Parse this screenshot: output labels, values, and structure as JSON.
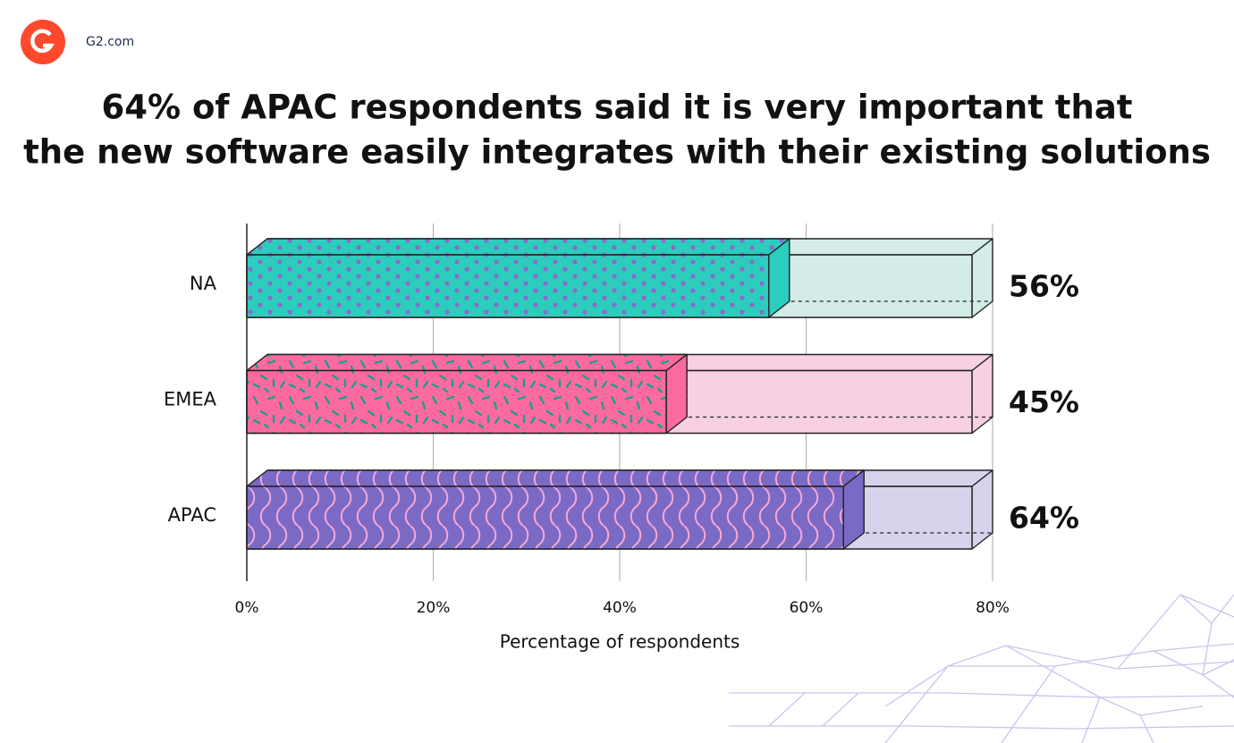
{
  "source": "G2.com",
  "chart_data": {
    "type": "bar3d",
    "orientation": "horizontal",
    "title": [
      "64% of APAC respondents said it is very important that",
      "the new software easily integrates with their existing solutions"
    ],
    "categories": [
      "NA",
      "EMEA",
      "APAC"
    ],
    "values": [
      56,
      45,
      64
    ],
    "value_labels": [
      "56%",
      "45%",
      "64%"
    ],
    "colors": [
      "#2ccdbd",
      "#fc6aa0",
      "#7b69c6"
    ],
    "track_colors": [
      "#d3ece8",
      "#f7d0e2",
      "#d7d3ec"
    ],
    "xlabel": "Percentage of respondents",
    "xlim": [
      0,
      80
    ],
    "xticks": [
      {
        "value": 0,
        "label": "0%"
      },
      {
        "value": 20,
        "label": "20%"
      },
      {
        "value": 40,
        "label": "40%"
      },
      {
        "value": 60,
        "label": "60%"
      },
      {
        "value": 80,
        "label": "80%"
      }
    ],
    "grid": true
  }
}
